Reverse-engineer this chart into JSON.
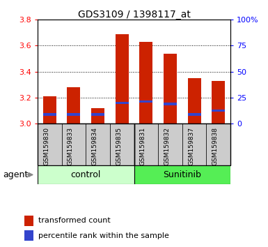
{
  "title": "GDS3109 / 1398117_at",
  "samples": [
    "GSM159830",
    "GSM159833",
    "GSM159834",
    "GSM159835",
    "GSM159831",
    "GSM159832",
    "GSM159837",
    "GSM159838"
  ],
  "group_boundaries": [
    0,
    4,
    8
  ],
  "group_labels": [
    "control",
    "Sunitinib"
  ],
  "group_colors": [
    "#ccffcc",
    "#55ee55"
  ],
  "red_values": [
    3.21,
    3.28,
    3.12,
    3.69,
    3.63,
    3.54,
    3.35,
    3.33
  ],
  "blue_values": [
    3.07,
    3.07,
    3.07,
    3.16,
    3.17,
    3.15,
    3.07,
    3.1
  ],
  "ymin": 3.0,
  "ymax": 3.8,
  "yticks_left": [
    3.0,
    3.2,
    3.4,
    3.6,
    3.8
  ],
  "right_tick_labels": [
    "0",
    "25",
    "50",
    "75",
    "100%"
  ],
  "bar_color": "#cc2200",
  "blue_color": "#3344cc",
  "legend_red": "transformed count",
  "legend_blue": "percentile rank within the sample",
  "bar_width": 0.55,
  "sample_box_color": "#cccccc",
  "agent_label": "agent"
}
